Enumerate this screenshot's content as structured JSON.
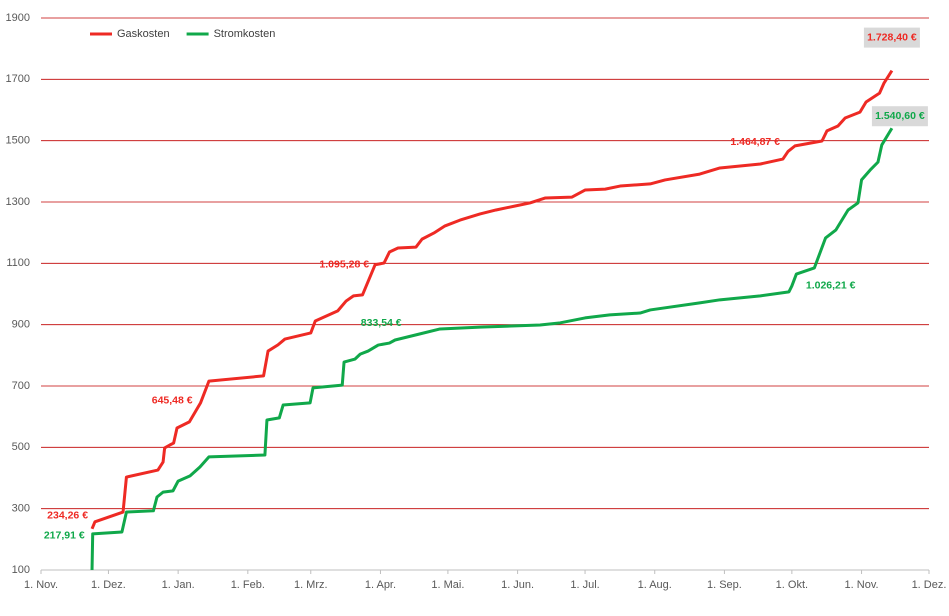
{
  "chart_data": {
    "type": "line",
    "xlim": [
      0,
      395
    ],
    "xticks": [
      {
        "value": 0,
        "label": "1. Nov."
      },
      {
        "value": 30,
        "label": "1. Dez."
      },
      {
        "value": 61,
        "label": "1. Jan."
      },
      {
        "value": 92,
        "label": "1. Feb."
      },
      {
        "value": 120,
        "label": "1. Mrz."
      },
      {
        "value": 151,
        "label": "1. Apr."
      },
      {
        "value": 181,
        "label": "1. Mai."
      },
      {
        "value": 212,
        "label": "1. Jun."
      },
      {
        "value": 242,
        "label": "1. Jul."
      },
      {
        "value": 273,
        "label": "1. Aug."
      },
      {
        "value": 304,
        "label": "1. Sep."
      },
      {
        "value": 334,
        "label": "1. Okt."
      },
      {
        "value": 365,
        "label": "1. Nov."
      },
      {
        "value": 395,
        "label": "1. Dez."
      }
    ],
    "ylim": [
      100,
      1900
    ],
    "yticks": [
      100,
      300,
      500,
      700,
      900,
      1100,
      1300,
      1500,
      1700,
      1900
    ],
    "grid": true,
    "grid_color": "#c00000",
    "legend": "top-left",
    "series": [
      {
        "name": "Gaskosten",
        "color": "#ee2a24",
        "x": [
          22.7,
          24,
          36.5,
          38,
          52,
          54.3,
          55,
          57.4,
          59,
          60.5,
          66,
          71,
          74.7,
          99,
          101,
          105.4,
          108.5,
          120,
          122,
          132,
          135.7,
          139,
          143,
          148.6,
          152.6,
          155,
          158.8,
          166.8,
          169.5,
          174.8,
          179.7,
          186.4,
          195.3,
          202.4,
          210.9,
          217.5,
          224.2,
          236.2,
          242,
          251,
          257.6,
          271,
          277.6,
          293,
          302,
          320,
          330,
          332.3,
          335.4,
          347.4,
          349.6,
          354.5,
          357.7,
          364.3,
          367,
          373,
          375,
          378.5
        ],
        "values": [
          234.26,
          257,
          289,
          403,
          426,
          452,
          498,
          508,
          514,
          563,
          583,
          645.48,
          716,
          733,
          814,
          834,
          853,
          873,
          912,
          945,
          977,
          994,
          997,
          1095.28,
          1101,
          1137,
          1150,
          1153,
          1179,
          1199,
          1222,
          1241,
          1261,
          1274,
          1287,
          1297,
          1313,
          1316,
          1339,
          1342,
          1352,
          1359,
          1372,
          1391,
          1411,
          1424,
          1440,
          1464.87,
          1483,
          1499,
          1532,
          1548,
          1574,
          1593,
          1626,
          1655,
          1688,
          1728.4
        ],
        "value_labels": [
          "234,26 €",
          null,
          null,
          null,
          null,
          null,
          null,
          null,
          null,
          null,
          null,
          "645,48 €",
          null,
          null,
          null,
          null,
          null,
          null,
          null,
          null,
          null,
          null,
          null,
          "1.095,28 €",
          null,
          null,
          null,
          null,
          null,
          null,
          null,
          null,
          null,
          null,
          null,
          null,
          null,
          null,
          null,
          null,
          null,
          null,
          null,
          null,
          null,
          null,
          null,
          "1.464,87 €",
          null,
          null,
          null,
          null,
          null,
          null,
          null,
          null,
          null,
          "1.728,40 €"
        ]
      },
      {
        "name": "Stromkosten",
        "color": "#10a84a",
        "x": [
          22.7,
          23,
          36,
          38,
          50,
          51.6,
          54.3,
          58.7,
          61,
          66.3,
          70.7,
          74.7,
          99.6,
          100.5,
          106,
          107.7,
          119.7,
          121,
          134,
          134.8,
          139.7,
          142,
          145.5,
          150,
          155,
          157.5,
          168.6,
          177.5,
          195.3,
          222,
          231,
          242,
          253,
          266.5,
          271,
          293,
          302,
          320,
          332.7,
          334,
          336,
          344,
          349,
          353.6,
          359,
          363.4,
          365,
          368.8,
          372.3,
          374,
          378.5
        ],
        "values": [
          100,
          217.91,
          224,
          289,
          293,
          338,
          354,
          358,
          390,
          407,
          436,
          469,
          475,
          589,
          596,
          638,
          645,
          694,
          703,
          778,
          788,
          804,
          814,
          833.54,
          840,
          850,
          870,
          886,
          892,
          899,
          906,
          922,
          932,
          938,
          948,
          971,
          981,
          994,
          1007,
          1026.21,
          1065,
          1085,
          1183,
          1209,
          1274,
          1297,
          1372,
          1404,
          1430,
          1486,
          1540.6
        ],
        "value_labels": [
          null,
          "217,91 €",
          null,
          null,
          null,
          null,
          null,
          null,
          null,
          null,
          null,
          null,
          null,
          null,
          null,
          null,
          null,
          null,
          null,
          null,
          null,
          null,
          null,
          "833,54 €",
          null,
          null,
          null,
          null,
          null,
          null,
          null,
          null,
          null,
          null,
          null,
          null,
          null,
          null,
          null,
          "1.026,21 €",
          null,
          null,
          null,
          null,
          null,
          null,
          null,
          null,
          null,
          null,
          "1.540,60 €"
        ]
      }
    ]
  }
}
